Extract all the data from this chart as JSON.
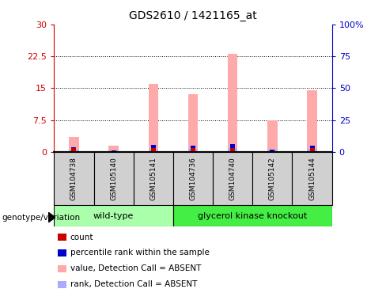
{
  "title": "GDS2610 / 1421165_at",
  "samples": [
    "GSM104738",
    "GSM105140",
    "GSM105141",
    "GSM104736",
    "GSM104740",
    "GSM105142",
    "GSM105144"
  ],
  "group_wt_count": 3,
  "group_gk_count": 4,
  "group_colors": {
    "wild-type": "#aaffaa",
    "glycerol kinase knockout": "#44ee44"
  },
  "ylim_left": [
    0,
    30
  ],
  "ylim_right": [
    0,
    100
  ],
  "yticks_left": [
    0,
    7.5,
    15,
    22.5,
    30
  ],
  "yticks_right": [
    0,
    25,
    50,
    75,
    100
  ],
  "ytick_labels_left": [
    "0",
    "7.5",
    "15",
    "22.5",
    "30"
  ],
  "ytick_labels_right": [
    "0",
    "25",
    "50",
    "75",
    "100%"
  ],
  "value_absent": [
    3.5,
    1.5,
    16.0,
    13.5,
    23.0,
    7.5,
    14.5
  ],
  "rank_absent": [
    0.6,
    0.4,
    0.65,
    0.7,
    0.85,
    0.55,
    0.7
  ],
  "count_values": [
    0.9,
    0.15,
    0.9,
    0.9,
    0.9,
    0.25,
    0.9
  ],
  "rank_values": [
    0.7,
    0.5,
    2.3,
    1.8,
    3.2,
    0.9,
    1.9
  ],
  "colors": {
    "count": "#cc0000",
    "rank": "#0000cc",
    "value_absent": "#ffaaaa",
    "rank_absent": "#aaaaff"
  },
  "legend_items": [
    {
      "label": "count",
      "color": "#cc0000"
    },
    {
      "label": "percentile rank within the sample",
      "color": "#0000cc"
    },
    {
      "label": "value, Detection Call = ABSENT",
      "color": "#ffaaaa"
    },
    {
      "label": "rank, Detection Call = ABSENT",
      "color": "#aaaaff"
    }
  ],
  "left_axis_color": "#cc0000",
  "right_axis_color": "#0000cc",
  "sample_box_color": "#d0d0d0",
  "grid_yticks": [
    7.5,
    15,
    22.5
  ]
}
